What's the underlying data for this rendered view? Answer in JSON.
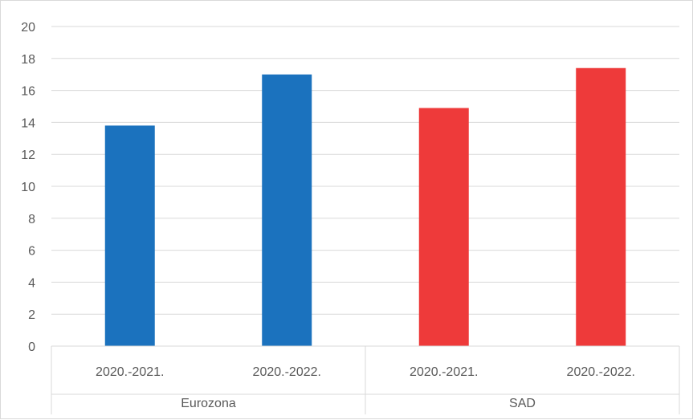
{
  "chart_data": {
    "type": "bar",
    "title": "",
    "xlabel": "",
    "ylabel": "",
    "ylim": [
      0,
      20
    ],
    "yticks": [
      0,
      2,
      4,
      6,
      8,
      10,
      12,
      14,
      16,
      18,
      20
    ],
    "grid": true,
    "groups": [
      {
        "name": "Eurozona",
        "color": "#1b72be",
        "categories": [
          "2020.-2021.",
          "2020.-2022."
        ],
        "values": [
          13.8,
          17.0
        ]
      },
      {
        "name": "SAD",
        "color": "#ee3a3a",
        "categories": [
          "2020.-2021.",
          "2020.-2022."
        ],
        "values": [
          14.9,
          17.4
        ]
      }
    ]
  }
}
